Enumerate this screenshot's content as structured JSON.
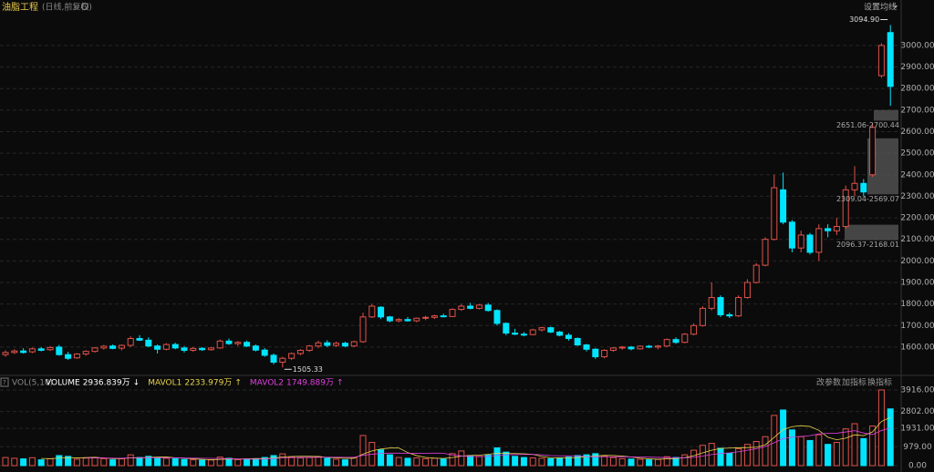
{
  "chart_data": [
    {
      "type": "candlestick",
      "title": "油脂工程",
      "subtitle": "(日线,前复权)",
      "menu": "设置均线",
      "up_color": "#e0524a",
      "down_color": "#00e5ff",
      "ylim": [
        1477,
        3152
      ],
      "yticks": [
        {
          "value": 1600,
          "label": "1600.00"
        },
        {
          "value": 1700,
          "label": "1700.00"
        },
        {
          "value": 1800,
          "label": "1800.00"
        },
        {
          "value": 1900,
          "label": "1900.00"
        },
        {
          "value": 2000,
          "label": "2000.00"
        },
        {
          "value": 2100,
          "label": "2100.00"
        },
        {
          "value": 2200,
          "label": "2200.00"
        },
        {
          "value": 2300,
          "label": "2300.00"
        },
        {
          "value": 2400,
          "label": "2400.00"
        },
        {
          "value": 2500,
          "label": "2500.00"
        },
        {
          "value": 2600,
          "label": "2600.00"
        },
        {
          "value": 2700,
          "label": "2700.00"
        },
        {
          "value": 2800,
          "label": "2800.00"
        },
        {
          "value": 2900,
          "label": "2900.00"
        },
        {
          "value": 3000,
          "label": "3000.00"
        }
      ],
      "grid": true,
      "ohlc": [
        [
          1565,
          1585,
          1555,
          1575
        ],
        [
          1575,
          1590,
          1568,
          1582
        ],
        [
          1582,
          1595,
          1570,
          1575
        ],
        [
          1578,
          1598,
          1572,
          1592
        ],
        [
          1592,
          1600,
          1580,
          1585
        ],
        [
          1588,
          1605,
          1582,
          1598
        ],
        [
          1600,
          1610,
          1560,
          1565
        ],
        [
          1565,
          1578,
          1540,
          1548
        ],
        [
          1550,
          1572,
          1545,
          1568
        ],
        [
          1568,
          1585,
          1560,
          1580
        ],
        [
          1580,
          1600,
          1575,
          1596
        ],
        [
          1596,
          1610,
          1588,
          1604
        ],
        [
          1605,
          1612,
          1590,
          1594
        ],
        [
          1595,
          1612,
          1585,
          1608
        ],
        [
          1608,
          1650,
          1600,
          1640
        ],
        [
          1640,
          1655,
          1628,
          1632
        ],
        [
          1632,
          1645,
          1600,
          1605
        ],
        [
          1605,
          1612,
          1570,
          1590
        ],
        [
          1590,
          1618,
          1585,
          1612
        ],
        [
          1612,
          1620,
          1590,
          1596
        ],
        [
          1596,
          1605,
          1575,
          1585
        ],
        [
          1585,
          1600,
          1578,
          1594
        ],
        [
          1594,
          1600,
          1582,
          1588
        ],
        [
          1588,
          1600,
          1583,
          1596
        ],
        [
          1596,
          1635,
          1592,
          1628
        ],
        [
          1628,
          1640,
          1610,
          1616
        ],
        [
          1616,
          1628,
          1605,
          1622
        ],
        [
          1622,
          1630,
          1600,
          1605
        ],
        [
          1605,
          1612,
          1580,
          1586
        ],
        [
          1586,
          1595,
          1555,
          1562
        ],
        [
          1562,
          1570,
          1520,
          1530
        ],
        [
          1530,
          1555,
          1505.33,
          1548
        ],
        [
          1548,
          1575,
          1540,
          1570
        ],
        [
          1570,
          1590,
          1562,
          1585
        ],
        [
          1585,
          1610,
          1578,
          1605
        ],
        [
          1605,
          1630,
          1595,
          1620
        ],
        [
          1620,
          1632,
          1600,
          1608
        ],
        [
          1608,
          1625,
          1600,
          1618
        ],
        [
          1618,
          1625,
          1600,
          1605
        ],
        [
          1605,
          1630,
          1600,
          1625
        ],
        [
          1625,
          1760,
          1620,
          1740
        ],
        [
          1740,
          1800,
          1735,
          1790
        ],
        [
          1785,
          1790,
          1730,
          1740
        ],
        [
          1740,
          1745,
          1715,
          1722
        ],
        [
          1722,
          1735,
          1715,
          1728
        ],
        [
          1728,
          1740,
          1718,
          1722
        ],
        [
          1722,
          1738,
          1715,
          1734
        ],
        [
          1734,
          1745,
          1725,
          1738
        ],
        [
          1738,
          1750,
          1730,
          1745
        ],
        [
          1745,
          1755,
          1738,
          1742
        ],
        [
          1742,
          1780,
          1740,
          1775
        ],
        [
          1775,
          1800,
          1768,
          1790
        ],
        [
          1790,
          1805,
          1775,
          1780
        ],
        [
          1780,
          1800,
          1775,
          1795
        ],
        [
          1795,
          1805,
          1765,
          1770
        ],
        [
          1770,
          1775,
          1700,
          1710
        ],
        [
          1710,
          1715,
          1655,
          1665
        ],
        [
          1665,
          1685,
          1655,
          1660
        ],
        [
          1660,
          1670,
          1650,
          1658
        ],
        [
          1658,
          1685,
          1655,
          1680
        ],
        [
          1680,
          1695,
          1672,
          1690
        ],
        [
          1690,
          1695,
          1665,
          1670
        ],
        [
          1670,
          1675,
          1650,
          1655
        ],
        [
          1655,
          1665,
          1630,
          1640
        ],
        [
          1640,
          1645,
          1605,
          1610
        ],
        [
          1610,
          1615,
          1580,
          1590
        ],
        [
          1590,
          1595,
          1545,
          1555
        ],
        [
          1555,
          1590,
          1548,
          1585
        ],
        [
          1585,
          1600,
          1578,
          1596
        ],
        [
          1596,
          1605,
          1588,
          1600
        ],
        [
          1600,
          1605,
          1585,
          1592
        ],
        [
          1592,
          1608,
          1588,
          1604
        ],
        [
          1604,
          1610,
          1595,
          1600
        ],
        [
          1600,
          1610,
          1590,
          1605
        ],
        [
          1605,
          1640,
          1600,
          1635
        ],
        [
          1635,
          1645,
          1615,
          1622
        ],
        [
          1622,
          1665,
          1618,
          1660
        ],
        [
          1660,
          1710,
          1655,
          1700
        ],
        [
          1700,
          1790,
          1695,
          1780
        ],
        [
          1780,
          1900,
          1770,
          1830
        ],
        [
          1830,
          1840,
          1740,
          1750
        ],
        [
          1750,
          1760,
          1735,
          1745
        ],
        [
          1745,
          1840,
          1740,
          1830
        ],
        [
          1830,
          1915,
          1825,
          1900
        ],
        [
          1900,
          1990,
          1895,
          1980
        ],
        [
          1980,
          2110,
          1975,
          2100
        ],
        [
          2100,
          2400,
          2095,
          2340
        ],
        [
          2330,
          2410,
          2170,
          2180
        ],
        [
          2180,
          2190,
          2040,
          2060
        ],
        [
          2060,
          2140,
          2040,
          2120
        ],
        [
          2120,
          2130,
          2030,
          2040
        ],
        [
          2040,
          2170,
          2000,
          2150
        ],
        [
          2150,
          2170,
          2110,
          2140
        ],
        [
          2140,
          2200,
          2120,
          2160
        ],
        [
          2160,
          2350,
          2150,
          2330
        ],
        [
          2330,
          2440,
          2300,
          2360
        ],
        [
          2360,
          2380,
          2300,
          2320
        ],
        [
          2400,
          2640,
          2390,
          2620
        ],
        [
          2860,
          3010,
          2850,
          3000
        ],
        [
          3060,
          3094.9,
          2720,
          2810
        ]
      ],
      "annotations": [
        {
          "label": "3094.90",
          "value": 3094.9
        },
        {
          "label": "1505.33",
          "value": 1505.33
        }
      ],
      "zones": [
        {
          "label": "2651.06-2700.44",
          "low": 2651.06,
          "high": 2700.44
        },
        {
          "label": "2309.04-2569.07",
          "low": 2309.04,
          "high": 2569.07
        },
        {
          "label": "2096.37-2168.01",
          "low": 2096.37,
          "high": 2168.01
        }
      ]
    },
    {
      "type": "bar",
      "title": "VOL(5,10)",
      "readouts": [
        {
          "name": "VOLUME",
          "label": "2936.839万",
          "arrow": "↓",
          "color": "#ffffff"
        },
        {
          "name": "MAVOL1",
          "label": "2233.979万",
          "arrow": "↑",
          "color": "#e8d44d"
        },
        {
          "name": "MAVOL2",
          "label": "1749.889万",
          "arrow": "↑",
          "color": "#e040e0"
        }
      ],
      "buttons": [
        "改参数",
        "加指标",
        "换指标"
      ],
      "ylim": [
        0,
        4388
      ],
      "yticks": [
        {
          "value": 0,
          "label": "0.00"
        },
        {
          "value": 979,
          "label": "979.00"
        },
        {
          "value": 1931,
          "label": "1931.00"
        },
        {
          "value": 2802,
          "label": "2802.00"
        },
        {
          "value": 3916,
          "label": "3916.00"
        }
      ],
      "values": [
        420,
        380,
        350,
        410,
        300,
        360,
        520,
        480,
        330,
        390,
        420,
        360,
        300,
        350,
        560,
        420,
        480,
        400,
        380,
        350,
        320,
        300,
        280,
        290,
        440,
        380,
        310,
        340,
        360,
        420,
        520,
        610,
        450,
        400,
        420,
        470,
        380,
        330,
        300,
        420,
        1560,
        1200,
        820,
        560,
        420,
        380,
        400,
        360,
        380,
        340,
        620,
        760,
        520,
        480,
        540,
        920,
        700,
        480,
        420,
        400,
        380,
        360,
        400,
        440,
        520,
        560,
        620,
        500,
        420,
        360,
        340,
        330,
        300,
        320,
        460,
        420,
        560,
        800,
        1050,
        1150,
        900,
        640,
        880,
        1100,
        1250,
        1500,
        2600,
        2880,
        1850,
        1500,
        1300,
        1600,
        1100,
        1200,
        1900,
        2170,
        1400,
        2050,
        3916,
        2936.839
      ]
    }
  ]
}
